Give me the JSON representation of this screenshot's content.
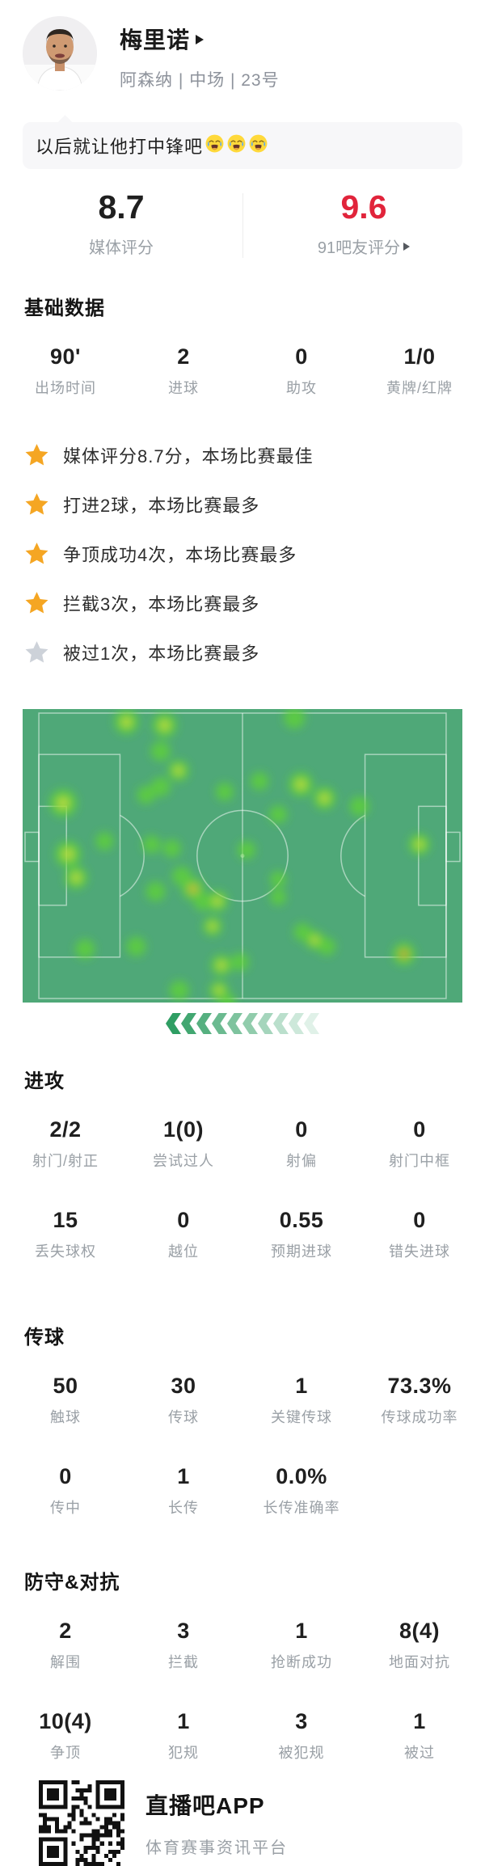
{
  "player": {
    "name": "梅里诺",
    "team_position": "阿森纳 | 中场 | 23号"
  },
  "comment": {
    "text": "以后就让他打中锋吧",
    "emoji": "crying-face",
    "emoji_count": 3
  },
  "ratings": {
    "media": {
      "value": "8.7",
      "label": "媒体评分"
    },
    "fans": {
      "value": "9.6",
      "label": "91吧友评分"
    }
  },
  "colors": {
    "accent_red": "#e1243b",
    "star_gold": "#F5A623",
    "star_gray": "#CDD2D9",
    "arrow_green": "#2f9e63"
  },
  "sections": {
    "basic": {
      "title": "基础数据",
      "stats": [
        {
          "value": "90'",
          "label": "出场时间"
        },
        {
          "value": "2",
          "label": "进球"
        },
        {
          "value": "0",
          "label": "助攻"
        },
        {
          "value": "1/0",
          "label": "黄牌/红牌"
        }
      ]
    },
    "highlights": [
      {
        "star": "gold",
        "text": "媒体评分8.7分，本场比赛最佳"
      },
      {
        "star": "gold",
        "text": "打进2球，本场比赛最多"
      },
      {
        "star": "gold",
        "text": "争顶成功4次，本场比赛最多"
      },
      {
        "star": "gold",
        "text": "拦截3次，本场比赛最多"
      },
      {
        "star": "gray",
        "text": "被过1次，本场比赛最多"
      }
    ],
    "attack": {
      "title": "进攻",
      "stats": [
        {
          "value": "2/2",
          "label": "射门/射正"
        },
        {
          "value": "1(0)",
          "label": "尝试过人"
        },
        {
          "value": "0",
          "label": "射偏"
        },
        {
          "value": "0",
          "label": "射门中框"
        },
        {
          "value": "15",
          "label": "丢失球权"
        },
        {
          "value": "0",
          "label": "越位"
        },
        {
          "value": "0.55",
          "label": "预期进球"
        },
        {
          "value": "0",
          "label": "错失进球"
        }
      ]
    },
    "passing": {
      "title": "传球",
      "stats": [
        {
          "value": "50",
          "label": "触球"
        },
        {
          "value": "30",
          "label": "传球"
        },
        {
          "value": "1",
          "label": "关键传球"
        },
        {
          "value": "73.3%",
          "label": "传球成功率"
        },
        {
          "value": "0",
          "label": "传中"
        },
        {
          "value": "1",
          "label": "长传"
        },
        {
          "value": "0.0%",
          "label": "长传准确率"
        }
      ]
    },
    "defense": {
      "title": "防守&对抗",
      "stats": [
        {
          "value": "2",
          "label": "解围"
        },
        {
          "value": "3",
          "label": "拦截"
        },
        {
          "value": "1",
          "label": "抢断成功"
        },
        {
          "value": "8(4)",
          "label": "地面对抗"
        },
        {
          "value": "10(4)",
          "label": "争顶"
        },
        {
          "value": "1",
          "label": "犯规"
        },
        {
          "value": "3",
          "label": "被犯规"
        },
        {
          "value": "1",
          "label": "被过"
        }
      ]
    }
  },
  "heatmap": {
    "pitch_color": "#4fa878",
    "line_color": "rgba(255,255,255,0.5)",
    "heat_colors": {
      "low": "#5fd435",
      "mid": "#d3e23c",
      "high": "#e2932f",
      "max": "#d23b20"
    },
    "attack_direction": {
      "pointing": "left",
      "count": 10
    },
    "spots": [
      [
        128,
        16,
        2,
        15
      ],
      [
        175,
        20,
        2,
        15
      ],
      [
        335,
        11,
        1,
        13
      ],
      [
        170,
        52,
        1,
        12
      ],
      [
        192,
        76,
        2,
        13
      ],
      [
        170,
        96,
        1,
        12
      ],
      [
        152,
        106,
        1,
        11
      ],
      [
        249,
        102,
        1,
        11
      ],
      [
        292,
        89,
        1,
        11
      ],
      [
        343,
        93,
        2,
        15
      ],
      [
        50,
        116,
        2,
        17
      ],
      [
        372,
        110,
        2,
        14
      ],
      [
        415,
        120,
        1,
        12
      ],
      [
        101,
        163,
        1,
        11
      ],
      [
        56,
        179,
        2,
        16
      ],
      [
        66,
        208,
        2,
        14
      ],
      [
        159,
        167,
        1,
        11
      ],
      [
        184,
        172,
        1,
        11
      ],
      [
        315,
        130,
        1,
        11
      ],
      [
        276,
        174,
        1,
        11
      ],
      [
        489,
        167,
        2,
        13
      ],
      [
        196,
        206,
        1,
        12
      ],
      [
        210,
        222,
        3,
        14
      ],
      [
        222,
        238,
        1,
        11
      ],
      [
        164,
        225,
        1,
        12
      ],
      [
        240,
        237,
        2,
        13
      ],
      [
        315,
        210,
        1,
        10
      ],
      [
        315,
        232,
        1,
        10
      ],
      [
        345,
        275,
        1,
        11
      ],
      [
        360,
        285,
        2,
        12
      ],
      [
        375,
        293,
        1,
        11
      ],
      [
        77,
        296,
        1,
        12
      ],
      [
        140,
        293,
        1,
        12
      ],
      [
        470,
        302,
        4,
        14
      ],
      [
        234,
        268,
        2,
        12
      ],
      [
        245,
        316,
        2,
        13
      ],
      [
        268,
        312,
        1,
        11
      ],
      [
        193,
        347,
        1,
        12
      ],
      [
        242,
        347,
        2,
        12
      ],
      [
        253,
        361,
        1,
        10
      ]
    ]
  },
  "footer": {
    "app_name": "直播吧APP",
    "tagline": "体育赛事资讯平台"
  }
}
